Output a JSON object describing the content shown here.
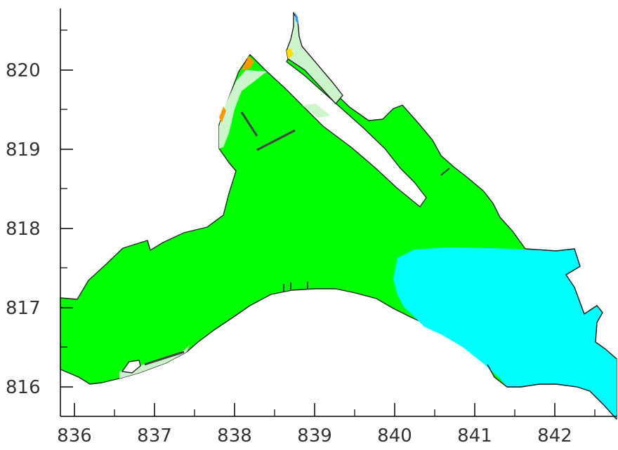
{
  "x_axis": {
    "ticks": [
      "836",
      "837",
      "838",
      "839",
      "840",
      "841",
      "842"
    ]
  },
  "y_axis": {
    "ticks": [
      "820",
      "819",
      "818",
      "817",
      "816"
    ]
  },
  "colors": {
    "background": "#ffffff",
    "high_value": "#00ff00",
    "low_value": "#00ffff",
    "mid_value": "#ccf5cc",
    "warm_1": "#ff9900",
    "warm_2": "#ffe000",
    "land_outline": "#000000",
    "axis": "#000000"
  }
}
